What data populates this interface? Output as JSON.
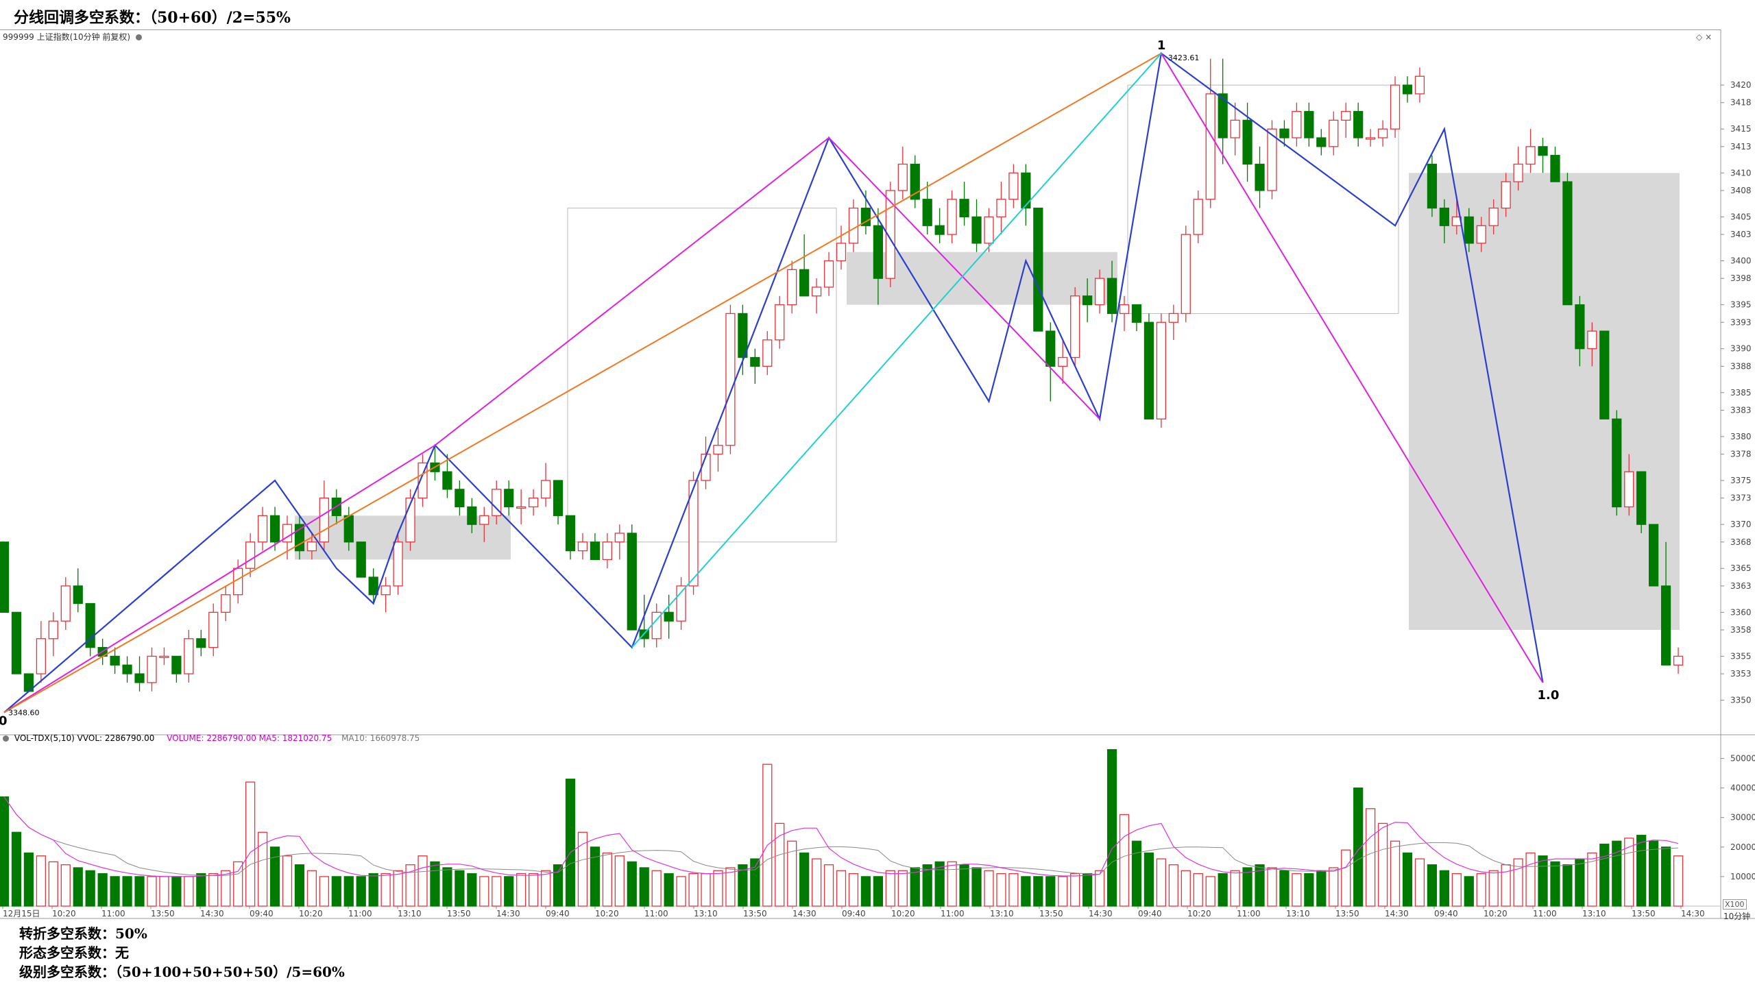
{
  "header": {
    "title": "分线回调多空系数：（50+60）/2=55%"
  },
  "main_panel": {
    "label": "999999 上证指数(10分钟 前复权)"
  },
  "volume_panel": {
    "name": "VOL-TDX(5,10) VVOL: 2286790.00",
    "volume": "VOLUME: 2286790.00 MA5: 1821020.75",
    "ma10": "MA10: 1660978.75"
  },
  "annotations": {
    "start_label": "0",
    "start_price": "3348.60",
    "peak_label": "1",
    "peak_price": "3423.61",
    "end_label": "1.0"
  },
  "footer": {
    "line1": "转折多空系数：50%",
    "line2": "形态多空系数：无",
    "line3": "级别多空系数：（50+100+50+50+50）/5=60%"
  },
  "axis": {
    "period": "10分钟",
    "unit": "X100"
  },
  "colors": {
    "up": "#e8333a",
    "down": "#007a00",
    "ma5": "#dd33dd",
    "ma10": "#888888"
  },
  "chart_data": {
    "type": "candlestick",
    "price_ticks": [
      3350,
      3353,
      3355,
      3358,
      3360,
      3363,
      3365,
      3368,
      3370,
      3373,
      3375,
      3378,
      3380,
      3383,
      3385,
      3388,
      3390,
      3393,
      3395,
      3398,
      3400,
      3403,
      3405,
      3408,
      3410,
      3413,
      3415,
      3418,
      3420
    ],
    "volume_ticks": [
      10000,
      20000,
      30000,
      40000,
      50000
    ],
    "time_labels": [
      "12月15日",
      "10:20",
      "11:00",
      "13:50",
      "14:30",
      "09:40",
      "10:20",
      "11:00",
      "13:10",
      "13:50",
      "14:30",
      "09:40",
      "10:20",
      "11:00",
      "13:10",
      "13:50",
      "14:30",
      "09:40",
      "10:20",
      "11:00",
      "13:10",
      "13:50",
      "14:30",
      "09:40",
      "10:20",
      "11:00",
      "13:10",
      "13:50",
      "14:30",
      "09:40",
      "10:20",
      "11:00",
      "13:10",
      "13:50",
      "14:30"
    ],
    "ylim": [
      3347,
      3423.61
    ],
    "candles": [
      [
        3368,
        3368,
        3360,
        3360
      ],
      [
        3360,
        3360,
        3353,
        3353
      ],
      [
        3353,
        3353,
        3351,
        3351
      ],
      [
        3353,
        3359,
        3352,
        3357
      ],
      [
        3357,
        3360,
        3355,
        3359
      ],
      [
        3359,
        3364,
        3358,
        3363
      ],
      [
        3363,
        3365,
        3360,
        3361
      ],
      [
        3361,
        3361,
        3355,
        3356
      ],
      [
        3356,
        3357,
        3354,
        3355
      ],
      [
        3355,
        3356,
        3353,
        3354
      ],
      [
        3354,
        3355,
        3352,
        3353
      ],
      [
        3353,
        3355,
        3351,
        3352
      ],
      [
        3352,
        3356,
        3351,
        3355
      ],
      [
        3355,
        3356,
        3354,
        3355
      ],
      [
        3355,
        3355,
        3352,
        3353
      ],
      [
        3353,
        3358,
        3352,
        3357
      ],
      [
        3357,
        3358,
        3355,
        3356
      ],
      [
        3356,
        3361,
        3355,
        3360
      ],
      [
        3360,
        3363,
        3359,
        3362
      ],
      [
        3362,
        3366,
        3361,
        3365
      ],
      [
        3365,
        3369,
        3364,
        3368
      ],
      [
        3368,
        3372,
        3367,
        3371
      ],
      [
        3371,
        3372,
        3367,
        3368
      ],
      [
        3368,
        3371,
        3366,
        3370
      ],
      [
        3370,
        3371,
        3366,
        3367
      ],
      [
        3367,
        3369,
        3366,
        3368
      ],
      [
        3368,
        3375,
        3367,
        3373
      ],
      [
        3373,
        3374,
        3370,
        3371
      ],
      [
        3371,
        3372,
        3367,
        3368
      ],
      [
        3368,
        3368,
        3364,
        3364
      ],
      [
        3364,
        3365,
        3361,
        3362
      ],
      [
        3362,
        3364,
        3360,
        3363
      ],
      [
        3363,
        3369,
        3362,
        3368
      ],
      [
        3368,
        3374,
        3367,
        3373
      ],
      [
        3373,
        3378,
        3372,
        3377
      ],
      [
        3377,
        3379,
        3375,
        3376
      ],
      [
        3376,
        3378,
        3373,
        3374
      ],
      [
        3374,
        3375,
        3371,
        3372
      ],
      [
        3372,
        3373,
        3369,
        3370
      ],
      [
        3370,
        3372,
        3368,
        3371
      ],
      [
        3371,
        3375,
        3370,
        3374
      ],
      [
        3374,
        3375,
        3371,
        3372
      ],
      [
        3372,
        3374,
        3370,
        3372
      ],
      [
        3372,
        3374,
        3371,
        3373
      ],
      [
        3373,
        3377,
        3372,
        3375
      ],
      [
        3375,
        3375,
        3370,
        3371
      ],
      [
        3371,
        3371,
        3366,
        3367
      ],
      [
        3367,
        3369,
        3366,
        3368
      ],
      [
        3368,
        3369,
        3366,
        3366
      ],
      [
        3366,
        3369,
        3365,
        3368
      ],
      [
        3368,
        3370,
        3366,
        3369
      ],
      [
        3369,
        3370,
        3358,
        3358
      ],
      [
        3358,
        3362,
        3356,
        3357
      ],
      [
        3357,
        3361,
        3356,
        3360
      ],
      [
        3360,
        3362,
        3357,
        3359
      ],
      [
        3359,
        3364,
        3358,
        3363
      ],
      [
        3363,
        3376,
        3362,
        3375
      ],
      [
        3375,
        3380,
        3374,
        3378
      ],
      [
        3378,
        3381,
        3376,
        3379
      ],
      [
        3379,
        3395,
        3378,
        3394
      ],
      [
        3394,
        3395,
        3387,
        3389
      ],
      [
        3389,
        3390,
        3386,
        3388
      ],
      [
        3388,
        3392,
        3387,
        3391
      ],
      [
        3391,
        3396,
        3390,
        3395
      ],
      [
        3395,
        3400,
        3394,
        3399
      ],
      [
        3399,
        3403,
        3396,
        3396
      ],
      [
        3396,
        3398,
        3394,
        3397
      ],
      [
        3397,
        3401,
        3396,
        3400
      ],
      [
        3400,
        3404,
        3399,
        3402
      ],
      [
        3402,
        3407,
        3401,
        3406
      ],
      [
        3406,
        3408,
        3403,
        3404
      ],
      [
        3404,
        3406,
        3395,
        3398
      ],
      [
        3398,
        3409,
        3397,
        3408
      ],
      [
        3408,
        3413,
        3407,
        3411
      ],
      [
        3411,
        3412,
        3406,
        3407
      ],
      [
        3407,
        3409,
        3403,
        3404
      ],
      [
        3404,
        3406,
        3402,
        3403
      ],
      [
        3403,
        3408,
        3402,
        3407
      ],
      [
        3407,
        3409,
        3404,
        3405
      ],
      [
        3405,
        3407,
        3401,
        3402
      ],
      [
        3402,
        3406,
        3401,
        3405
      ],
      [
        3405,
        3409,
        3403,
        3407
      ],
      [
        3407,
        3411,
        3406,
        3410
      ],
      [
        3410,
        3411,
        3404,
        3406
      ],
      [
        3406,
        3406,
        3392,
        3392
      ],
      [
        3392,
        3393,
        3384,
        3388
      ],
      [
        3388,
        3391,
        3386,
        3389
      ],
      [
        3389,
        3397,
        3388,
        3396
      ],
      [
        3396,
        3398,
        3393,
        3395
      ],
      [
        3395,
        3399,
        3394,
        3398
      ],
      [
        3398,
        3400,
        3393,
        3394
      ],
      [
        3394,
        3396,
        3392,
        3395
      ],
      [
        3395,
        3395,
        3392,
        3393
      ],
      [
        3393,
        3394,
        3382,
        3382
      ],
      [
        3382,
        3394,
        3381,
        3393
      ],
      [
        3393,
        3395,
        3391,
        3394
      ],
      [
        3394,
        3404,
        3393,
        3403
      ],
      [
        3403,
        3408,
        3402,
        3407
      ],
      [
        3407,
        3423,
        3406,
        3419
      ],
      [
        3419,
        3423,
        3411,
        3414
      ],
      [
        3414,
        3418,
        3412,
        3416
      ],
      [
        3416,
        3418,
        3409,
        3411
      ],
      [
        3411,
        3413,
        3406,
        3408
      ],
      [
        3408,
        3416,
        3407,
        3415
      ],
      [
        3415,
        3416,
        3413,
        3414
      ],
      [
        3414,
        3418,
        3413,
        3417
      ],
      [
        3417,
        3418,
        3413,
        3414
      ],
      [
        3414,
        3415,
        3412,
        3413
      ],
      [
        3413,
        3417,
        3412,
        3416
      ],
      [
        3416,
        3418,
        3414,
        3417
      ],
      [
        3417,
        3418,
        3413,
        3414
      ],
      [
        3414,
        3415,
        3413,
        3414
      ],
      [
        3414,
        3416,
        3413,
        3415
      ],
      [
        3415,
        3421,
        3414,
        3420
      ],
      [
        3420,
        3421,
        3418,
        3419
      ],
      [
        3419,
        3422,
        3418,
        3421
      ],
      [
        3411,
        3412,
        3405,
        3406
      ],
      [
        3406,
        3407,
        3402,
        3404
      ],
      [
        3404,
        3407,
        3403,
        3405
      ],
      [
        3405,
        3406,
        3401,
        3402
      ],
      [
        3402,
        3405,
        3401,
        3404
      ],
      [
        3404,
        3407,
        3403,
        3406
      ],
      [
        3406,
        3410,
        3405,
        3409
      ],
      [
        3409,
        3413,
        3408,
        3411
      ],
      [
        3411,
        3415,
        3410,
        3413
      ],
      [
        3413,
        3414,
        3410,
        3412
      ],
      [
        3412,
        3413,
        3409,
        3409
      ],
      [
        3409,
        3410,
        3395,
        3395
      ],
      [
        3395,
        3396,
        3388,
        3390
      ],
      [
        3390,
        3393,
        3388,
        3392
      ],
      [
        3392,
        3392,
        3382,
        3382
      ],
      [
        3382,
        3383,
        3371,
        3372
      ],
      [
        3372,
        3378,
        3371,
        3376
      ],
      [
        3376,
        3376,
        3369,
        3370
      ],
      [
        3370,
        3370,
        3363,
        3363
      ],
      [
        3363,
        3368,
        3354,
        3354
      ],
      [
        3354,
        3356,
        3353,
        3355
      ]
    ],
    "volumes": [
      37,
      25,
      18,
      17,
      15,
      14,
      13,
      12,
      11,
      10,
      10,
      10,
      10,
      10,
      10,
      10,
      11,
      11,
      12,
      15,
      42,
      25,
      20,
      17,
      14,
      12,
      10,
      10,
      10,
      10,
      11,
      11,
      12,
      14,
      17,
      15,
      13,
      12,
      11,
      10,
      10,
      10,
      11,
      11,
      12,
      14,
      43,
      25,
      20,
      18,
      17,
      15,
      13,
      12,
      11,
      10,
      11,
      11,
      12,
      13,
      14,
      16,
      48,
      28,
      22,
      18,
      16,
      14,
      12,
      11,
      10,
      10,
      12,
      12,
      13,
      14,
      15,
      15,
      14,
      13,
      12,
      11,
      11,
      10,
      10,
      10,
      10,
      11,
      11,
      12,
      53,
      31,
      22,
      18,
      16,
      14,
      12,
      11,
      10,
      11,
      12,
      13,
      14,
      13,
      12,
      11,
      11,
      12,
      13,
      19,
      40,
      33,
      28,
      22,
      18,
      16,
      14,
      12,
      11,
      10,
      11,
      12,
      14,
      16,
      18,
      17,
      15,
      14,
      16,
      18,
      21,
      22,
      23,
      24,
      22,
      20,
      17,
      15,
      14,
      13
    ]
  }
}
